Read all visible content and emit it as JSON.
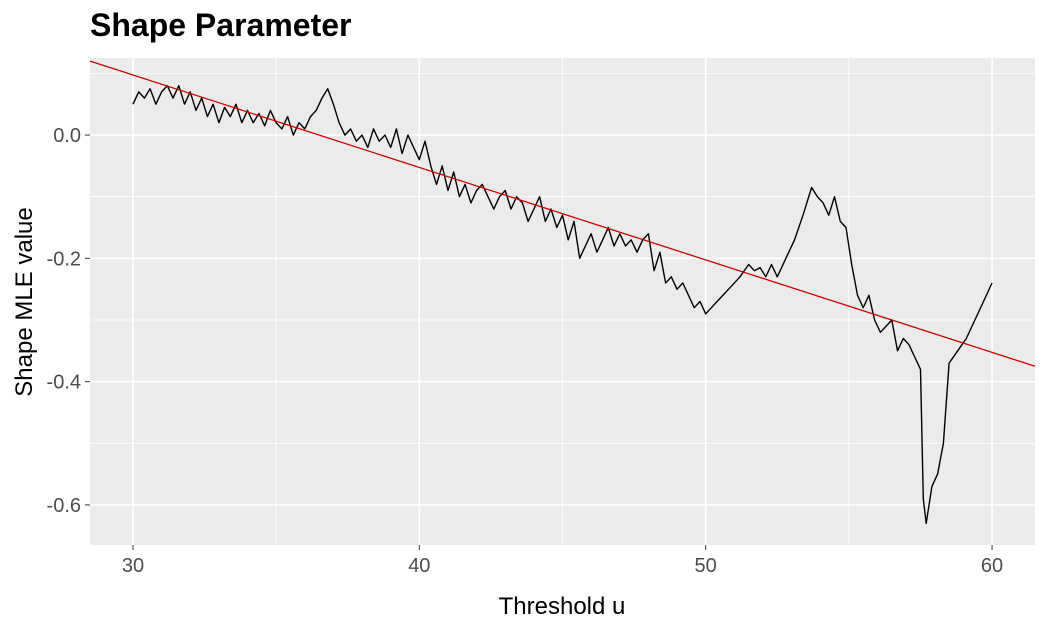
{
  "chart_data": {
    "type": "line",
    "title": "Shape Parameter",
    "xlabel": "Threshold u",
    "ylabel": "Shape MLE value",
    "xlim": [
      28.5,
      61.5
    ],
    "ylim": [
      -0.665,
      0.125
    ],
    "grid": true,
    "background": "#ebebeb",
    "x_ticks": [
      30,
      40,
      50,
      60
    ],
    "x_tick_labels": [
      "30",
      "40",
      "50",
      "60"
    ],
    "y_ticks": [
      0.0,
      -0.2,
      -0.4,
      -0.6
    ],
    "y_tick_labels": [
      "0.0",
      "-0.2",
      "-0.4",
      "-0.6"
    ],
    "series": [
      {
        "color": "#000000",
        "x": [
          30.0,
          30.2,
          30.4,
          30.6,
          30.8,
          31.0,
          31.2,
          31.4,
          31.6,
          31.8,
          32.0,
          32.2,
          32.4,
          32.6,
          32.8,
          33.0,
          33.2,
          33.4,
          33.6,
          33.8,
          34.0,
          34.2,
          34.4,
          34.6,
          34.8,
          35.0,
          35.2,
          35.4,
          35.6,
          35.8,
          36.0,
          36.2,
          36.4,
          36.6,
          36.8,
          37.0,
          37.2,
          37.4,
          37.6,
          37.8,
          38.0,
          38.2,
          38.4,
          38.6,
          38.8,
          39.0,
          39.2,
          39.4,
          39.6,
          39.8,
          40.0,
          40.2,
          40.4,
          40.6,
          40.8,
          41.0,
          41.2,
          41.4,
          41.6,
          41.8,
          42.0,
          42.2,
          42.4,
          42.6,
          42.8,
          43.0,
          43.2,
          43.4,
          43.6,
          43.8,
          44.0,
          44.2,
          44.4,
          44.6,
          44.8,
          45.0,
          45.2,
          45.4,
          45.6,
          45.8,
          46.0,
          46.2,
          46.4,
          46.6,
          46.8,
          47.0,
          47.2,
          47.4,
          47.6,
          47.8,
          48.0,
          48.2,
          48.4,
          48.6,
          48.8,
          49.0,
          49.2,
          49.4,
          49.6,
          49.8,
          50.0,
          50.4,
          50.8,
          51.2,
          51.5,
          51.7,
          51.9,
          52.1,
          52.3,
          52.5,
          52.8,
          53.1,
          53.4,
          53.7,
          53.9,
          54.1,
          54.3,
          54.5,
          54.7,
          54.9,
          55.1,
          55.3,
          55.5,
          55.7,
          55.9,
          56.1,
          56.3,
          56.5,
          56.7,
          56.9,
          57.1,
          57.3,
          57.5,
          57.6,
          57.7,
          57.9,
          58.1,
          58.3,
          58.5,
          58.8,
          59.1,
          59.4,
          59.7,
          60.0
        ],
        "y": [
          0.05,
          0.07,
          0.06,
          0.075,
          0.05,
          0.07,
          0.08,
          0.06,
          0.08,
          0.05,
          0.07,
          0.04,
          0.06,
          0.03,
          0.05,
          0.02,
          0.045,
          0.03,
          0.05,
          0.02,
          0.04,
          0.02,
          0.035,
          0.015,
          0.04,
          0.02,
          0.01,
          0.03,
          0.0,
          0.02,
          0.01,
          0.03,
          0.04,
          0.06,
          0.075,
          0.05,
          0.02,
          0.0,
          0.01,
          -0.01,
          0.0,
          -0.02,
          0.01,
          -0.01,
          0.0,
          -0.02,
          0.01,
          -0.03,
          0.0,
          -0.02,
          -0.04,
          -0.01,
          -0.05,
          -0.08,
          -0.05,
          -0.09,
          -0.06,
          -0.1,
          -0.08,
          -0.11,
          -0.09,
          -0.08,
          -0.1,
          -0.12,
          -0.1,
          -0.09,
          -0.12,
          -0.1,
          -0.11,
          -0.14,
          -0.12,
          -0.1,
          -0.14,
          -0.12,
          -0.15,
          -0.13,
          -0.17,
          -0.14,
          -0.2,
          -0.18,
          -0.16,
          -0.19,
          -0.17,
          -0.15,
          -0.18,
          -0.16,
          -0.18,
          -0.17,
          -0.19,
          -0.17,
          -0.16,
          -0.22,
          -0.19,
          -0.24,
          -0.23,
          -0.25,
          -0.24,
          -0.26,
          -0.28,
          -0.27,
          -0.29,
          -0.27,
          -0.25,
          -0.23,
          -0.21,
          -0.22,
          -0.215,
          -0.23,
          -0.21,
          -0.23,
          -0.2,
          -0.17,
          -0.13,
          -0.085,
          -0.1,
          -0.11,
          -0.13,
          -0.1,
          -0.14,
          -0.15,
          -0.21,
          -0.26,
          -0.28,
          -0.26,
          -0.3,
          -0.32,
          -0.31,
          -0.3,
          -0.35,
          -0.33,
          -0.34,
          -0.36,
          -0.38,
          -0.59,
          -0.63,
          -0.57,
          -0.55,
          -0.5,
          -0.37,
          -0.35,
          -0.33,
          -0.3,
          -0.27,
          -0.24
        ]
      },
      {
        "color": "#cc0000",
        "x": [
          28.5,
          61.5
        ],
        "y": [
          0.12,
          -0.375
        ]
      }
    ]
  }
}
